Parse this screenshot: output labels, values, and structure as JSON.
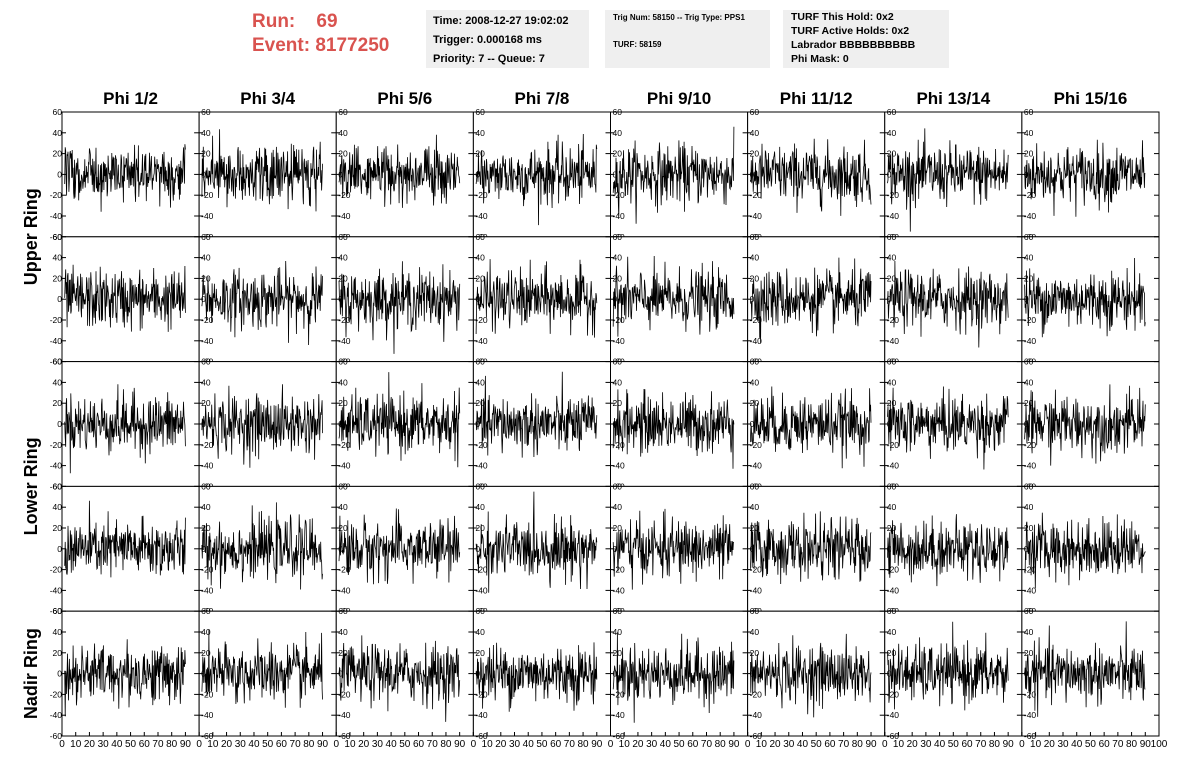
{
  "header": {
    "run_label": "Run:",
    "run_value": "69",
    "event_label": "Event:",
    "event_value": "8177250",
    "accent_color": "#d9534f",
    "box1": {
      "line1": "Time: 2008-12-27 19:02:02",
      "line2": "Trigger: 0.000168 ms",
      "line3": "Priority: 7 -- Queue: 7"
    },
    "box2": {
      "line1": "Trig Num: 58150 -- Trig Type: PPS1",
      "line2": "TURF: 58159"
    },
    "box3": {
      "line1": "TURF This Hold: 0x2",
      "line2": "TURF Active Holds: 0x2",
      "line3": "Labrador BBBBBBBBBB",
      "line4": "Phi Mask: 0"
    }
  },
  "chart_data": {
    "type": "line",
    "columns": [
      "Phi 1/2",
      "Phi 3/4",
      "Phi 5/6",
      "Phi 7/8",
      "Phi 9/10",
      "Phi 11/12",
      "Phi 13/14",
      "Phi 15/16"
    ],
    "ring_labels": [
      "Upper Ring",
      "Lower Ring",
      "Nadir Ring"
    ],
    "rows": 5,
    "ylim": [
      -60,
      60
    ],
    "yticks": [
      -60,
      -40,
      -20,
      0,
      20,
      40,
      60
    ],
    "xlim": [
      0,
      100
    ],
    "xticks": [
      0,
      10,
      20,
      30,
      40,
      50,
      60,
      70,
      80,
      90,
      100
    ],
    "samples_per_trace": 260,
    "trace_amplitude": 14,
    "grid": false
  }
}
